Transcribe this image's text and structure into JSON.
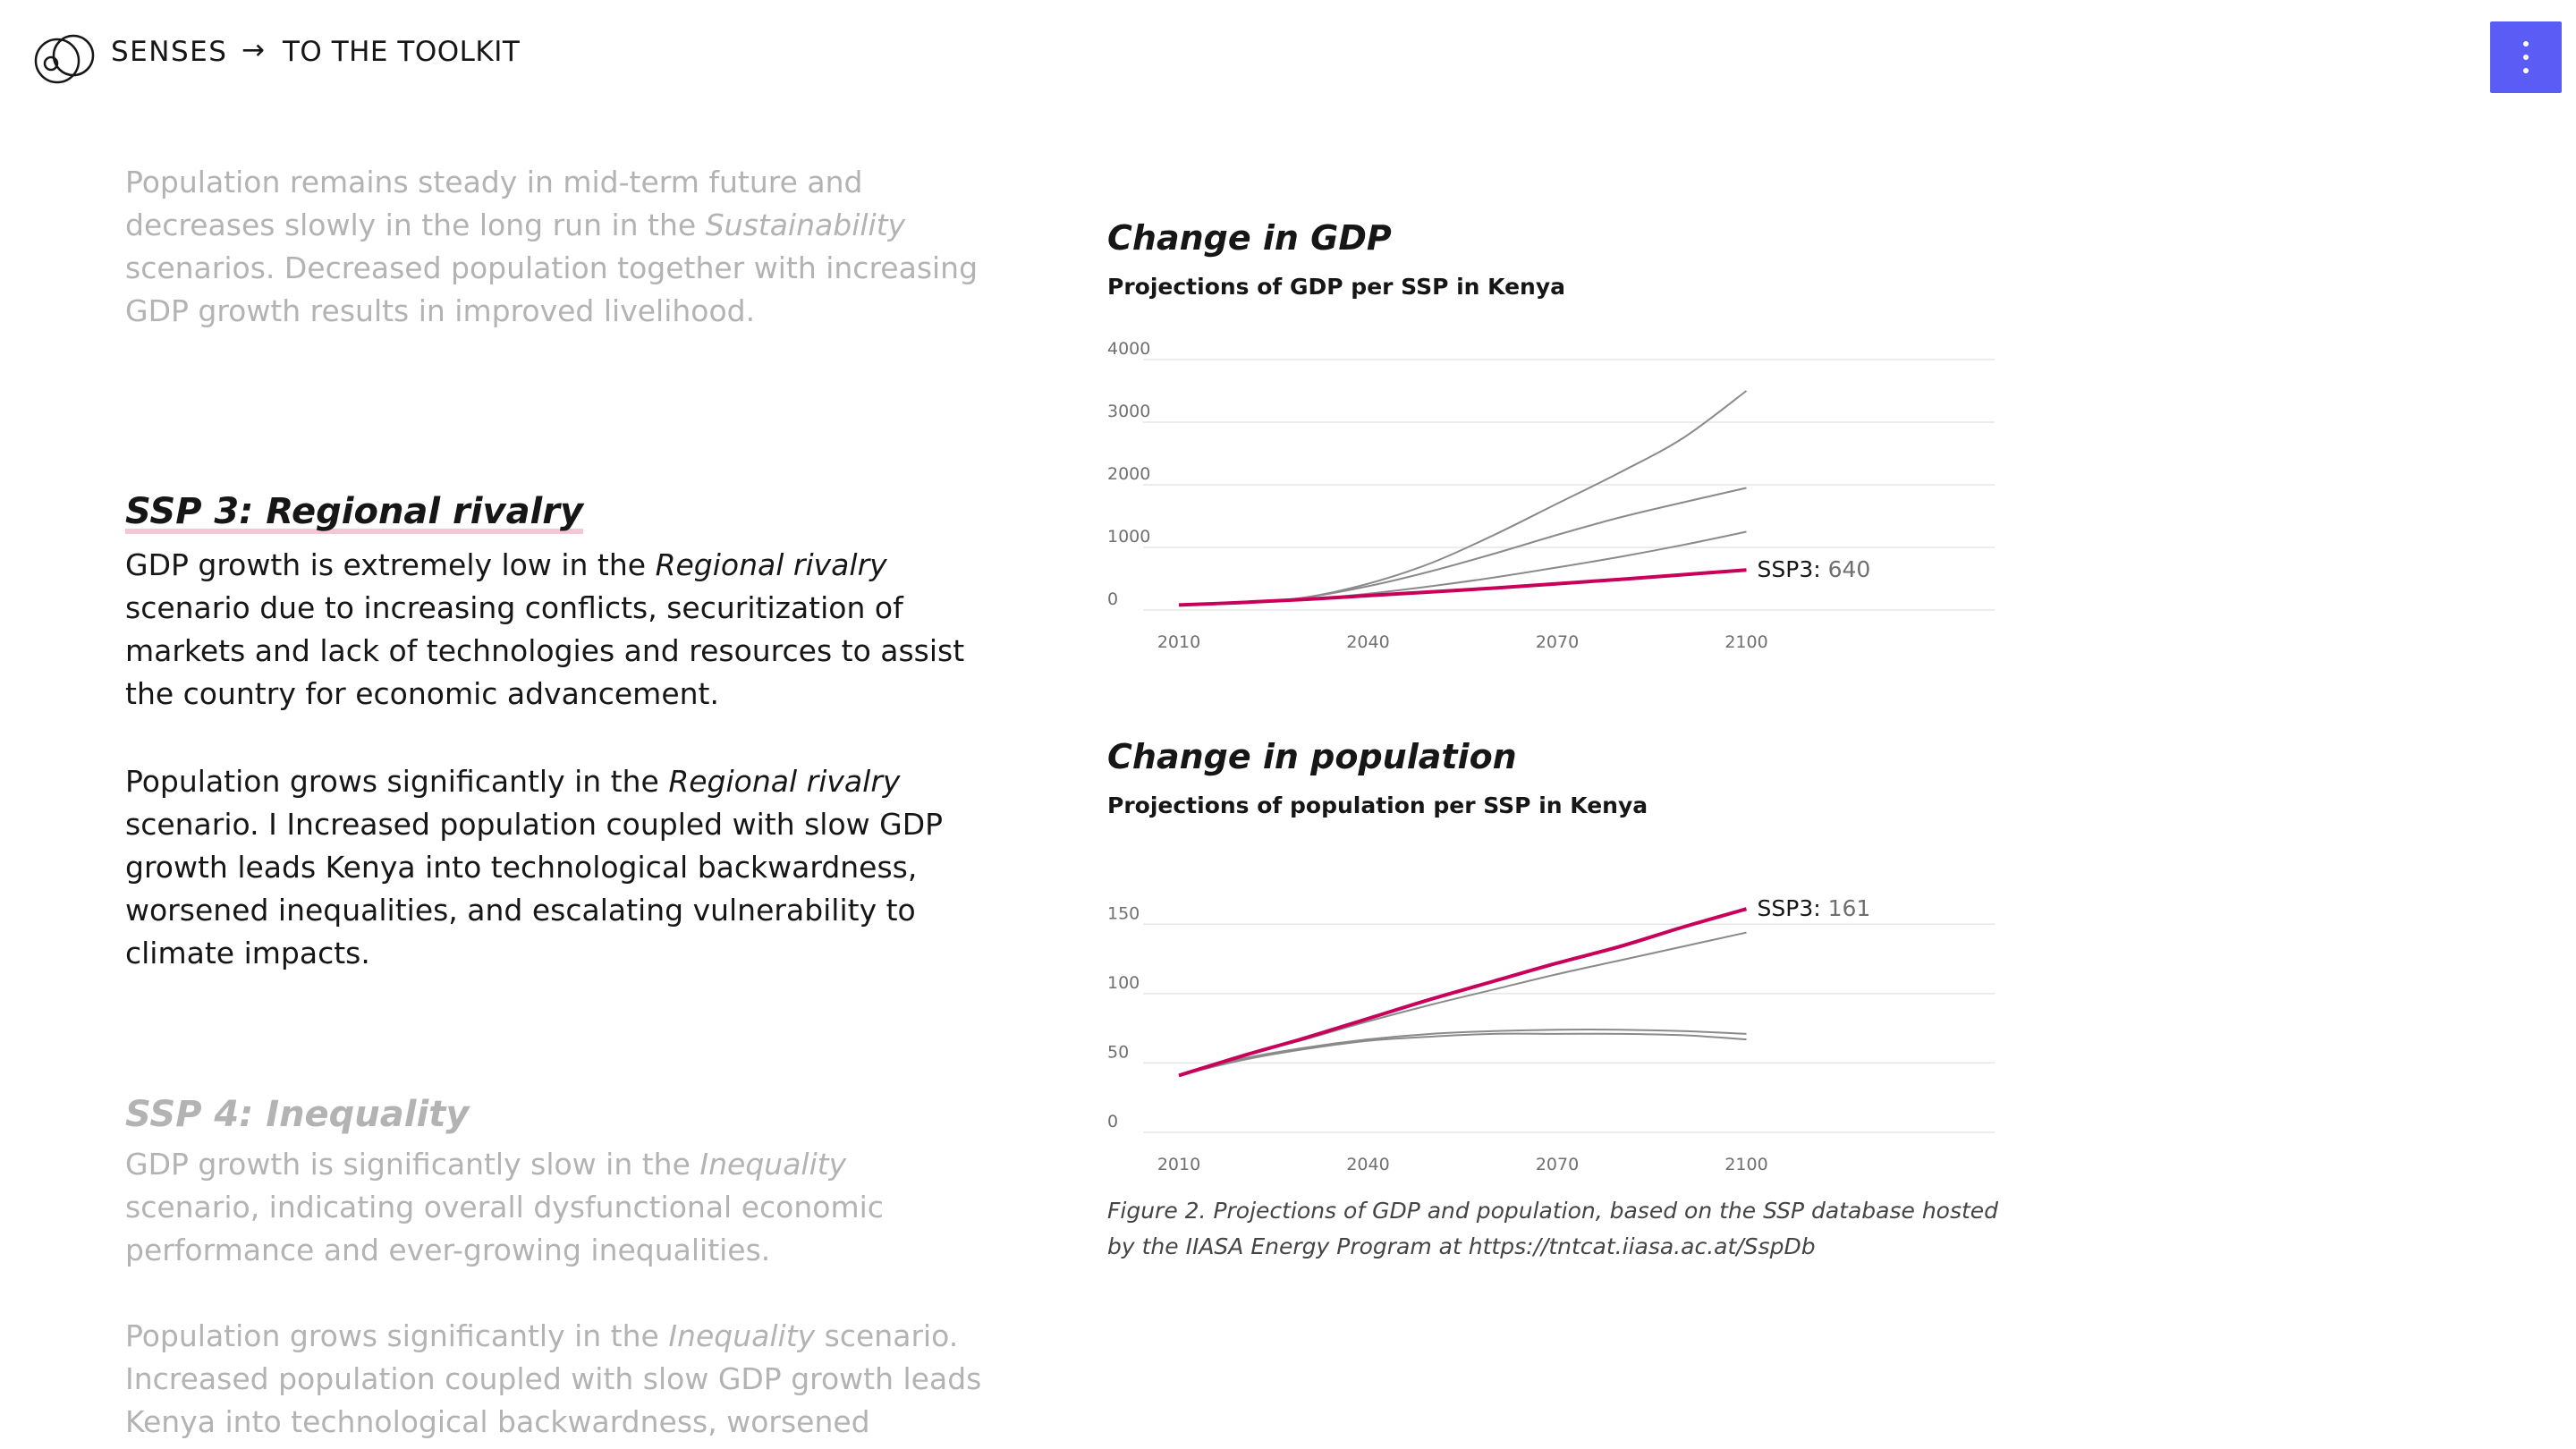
{
  "header": {
    "brand": "SENSES",
    "arrow": "→",
    "nav_label": "TO THE TOOLKIT"
  },
  "left": {
    "intro_parts": [
      "Population remains steady in mid-term future and decreases slowly in the long run in the ",
      "Sustainability",
      " scenarios. Decreased population together with increasing GDP growth results in improved livelihood."
    ],
    "ssp3": {
      "title": "SSP 3: Regional rivalry",
      "p1_parts": [
        "GDP growth is extremely low in the ",
        "Regional rivalry",
        " scenario due to increasing conflicts, securitization of markets and lack of technologies and resources to assist the country for economic advancement."
      ],
      "p2_parts": [
        "Population grows significantly in the ",
        "Regional rivalry",
        " scenario. I Increased population coupled with slow GDP growth leads Kenya into technological backwardness, worsened inequalities, and escalating vulnerability to climate impacts."
      ]
    },
    "ssp4": {
      "title": "SSP 4: Inequality",
      "p1_parts": [
        "GDP growth is significantly slow in the ",
        "Inequality",
        " scenario, indicating overall dysfunctional economic performance and ever-growing inequalities."
      ],
      "p2_parts": [
        "Population grows significantly in the ",
        "Inequality",
        " scenario. Increased population coupled with slow GDP growth leads Kenya into technological backwardness, worsened inequalities, and"
      ]
    }
  },
  "colors": {
    "highlight": "#c8005a",
    "other_series": "#8a8a8a",
    "grid": "#e6e6e6",
    "faded_text": "#b3b3b3",
    "menu_button": "#5b5cf6"
  },
  "chart_data": [
    {
      "type": "line",
      "heading": "Change in GDP",
      "title": "Projections of GDP per SSP in Kenya",
      "x_ticks": [
        2010,
        2040,
        2070,
        2100
      ],
      "y_ticks": [
        0,
        1000,
        2000,
        3000,
        4000
      ],
      "xlim": [
        2010,
        2130
      ],
      "ylim": [
        0,
        4000
      ],
      "grid": true,
      "series": [
        {
          "highlight": false,
          "x": [
            2010,
            2020,
            2030,
            2040,
            2050,
            2060,
            2070,
            2080,
            2090,
            2100
          ],
          "values": [
            80,
            110,
            200,
            420,
            750,
            1200,
            1700,
            2200,
            2750,
            3500
          ]
        },
        {
          "highlight": false,
          "x": [
            2010,
            2020,
            2030,
            2040,
            2050,
            2060,
            2070,
            2080,
            2090,
            2100
          ],
          "values": [
            80,
            110,
            200,
            380,
            620,
            900,
            1200,
            1480,
            1720,
            1950
          ]
        },
        {
          "highlight": false,
          "x": [
            2010,
            2020,
            2030,
            2040,
            2050,
            2060,
            2070,
            2080,
            2090,
            2100
          ],
          "values": [
            80,
            110,
            170,
            260,
            380,
            520,
            680,
            850,
            1040,
            1250
          ]
        },
        {
          "highlight": true,
          "x": [
            2010,
            2020,
            2030,
            2040,
            2050,
            2060,
            2070,
            2080,
            2090,
            2100
          ],
          "values": [
            80,
            120,
            170,
            230,
            290,
            350,
            420,
            490,
            565,
            640
          ]
        }
      ],
      "end_label": {
        "name": "SSP3:",
        "value": "640"
      }
    },
    {
      "type": "line",
      "heading": "Change in population",
      "title": "Projections of population per SSP in Kenya",
      "x_ticks": [
        2010,
        2040,
        2070,
        2100
      ],
      "y_ticks": [
        0,
        50,
        100,
        150
      ],
      "xlim": [
        2010,
        2130
      ],
      "ylim": [
        0,
        165
      ],
      "grid": true,
      "series": [
        {
          "highlight": false,
          "x": [
            2010,
            2020,
            2030,
            2040,
            2050,
            2060,
            2070,
            2080,
            2090,
            2100
          ],
          "values": [
            41,
            55,
            67,
            80,
            92,
            103,
            114,
            124,
            134,
            144
          ]
        },
        {
          "highlight": false,
          "x": [
            2010,
            2020,
            2030,
            2040,
            2050,
            2060,
            2070,
            2080,
            2090,
            2100
          ],
          "values": [
            41,
            53,
            61,
            67,
            71,
            73,
            74,
            74,
            73,
            71
          ]
        },
        {
          "highlight": false,
          "x": [
            2010,
            2020,
            2030,
            2040,
            2050,
            2060,
            2070,
            2080,
            2090,
            2100
          ],
          "values": [
            41,
            52,
            60,
            66,
            69,
            71,
            71,
            71,
            70,
            67
          ]
        },
        {
          "highlight": true,
          "x": [
            2010,
            2020,
            2030,
            2040,
            2050,
            2060,
            2070,
            2080,
            2090,
            2100
          ],
          "values": [
            41,
            55,
            68,
            82,
            96,
            109,
            122,
            134,
            148,
            161
          ]
        }
      ],
      "end_label": {
        "name": "SSP3:",
        "value": "161"
      }
    }
  ],
  "caption": "Figure 2. Projections of GDP and population, based on the SSP database hosted by the IIASA Energy Program at https://tntcat.iiasa.ac.at/SspDb"
}
